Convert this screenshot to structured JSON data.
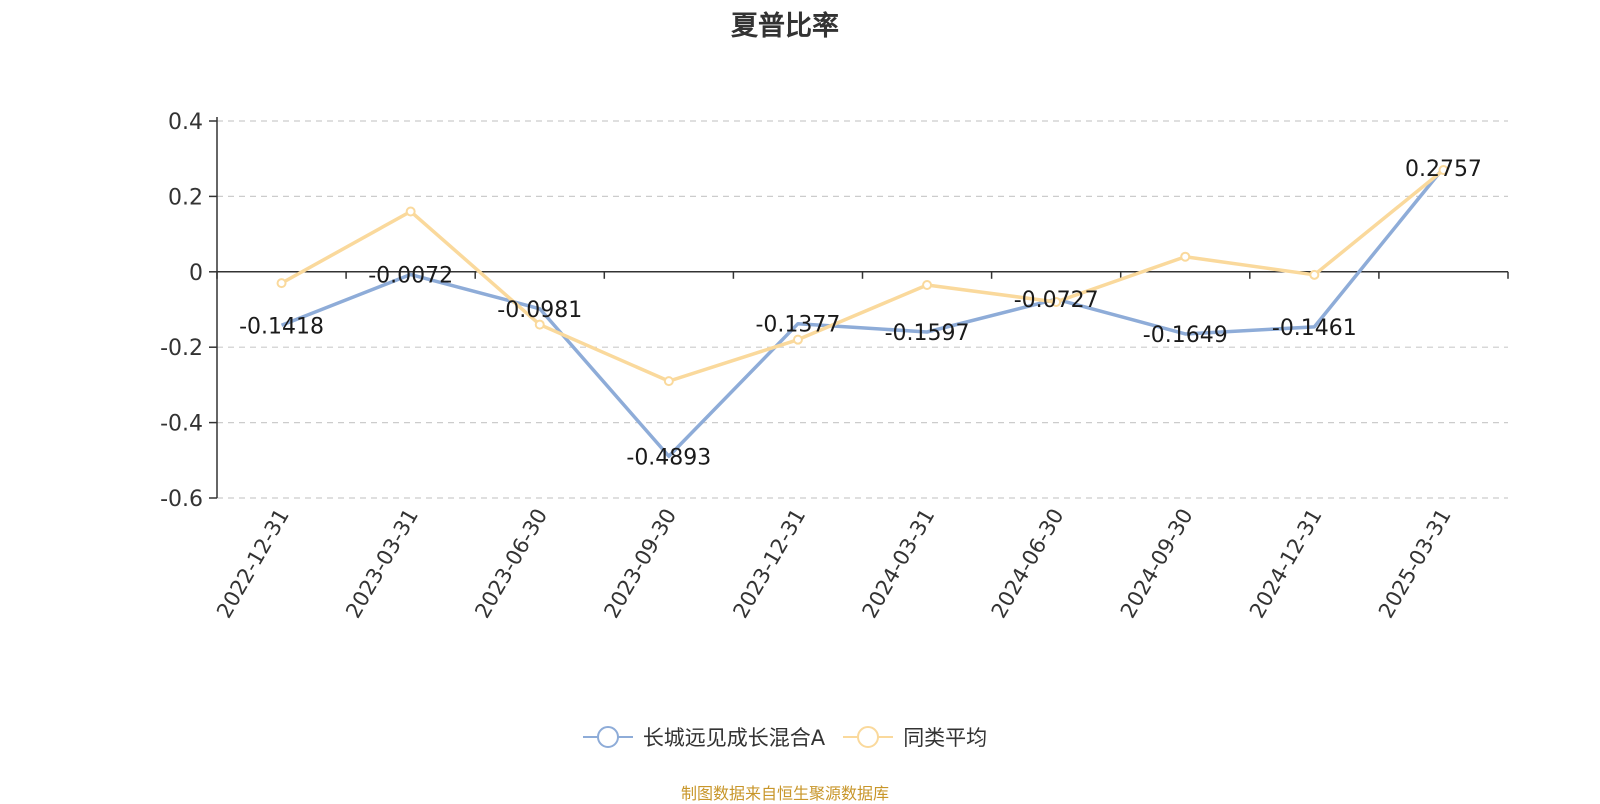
{
  "title": "夏普比率",
  "footer": "制图数据来自恒生聚源数据库",
  "chart_data": {
    "type": "line",
    "title": "夏普比率",
    "categories": [
      "2022-12-31",
      "2023-03-31",
      "2023-06-30",
      "2023-09-30",
      "2023-12-31",
      "2024-03-31",
      "2024-06-30",
      "2024-09-30",
      "2024-12-31",
      "2025-03-31"
    ],
    "ylim": [
      -0.6,
      0.4
    ],
    "yticks": [
      0.4,
      0.2,
      0,
      -0.2,
      -0.4,
      -0.6
    ],
    "ytick_labels": [
      "0.4",
      "0.2",
      "0",
      "-0.2",
      "-0.4",
      "-0.6"
    ],
    "grid": true,
    "legend_position": "bottom",
    "series": [
      {
        "name": "长城远见成长混合A",
        "color": "#8eacd8",
        "values": [
          -0.1418,
          -0.0072,
          -0.0981,
          -0.4893,
          -0.1377,
          -0.1597,
          -0.0727,
          -0.1649,
          -0.1461,
          0.2757
        ],
        "labels": [
          "-0.1418",
          "-0.0072",
          "-0.0981",
          "-0.4893",
          "-0.1377",
          "-0.1597",
          "-0.0727",
          "-0.1649",
          "-0.1461",
          "0.2757"
        ]
      },
      {
        "name": "同类平均",
        "color": "#fad99c",
        "values": [
          -0.03,
          0.16,
          -0.14,
          -0.29,
          -0.18,
          -0.035,
          -0.08,
          0.04,
          -0.008,
          0.27
        ]
      }
    ]
  }
}
